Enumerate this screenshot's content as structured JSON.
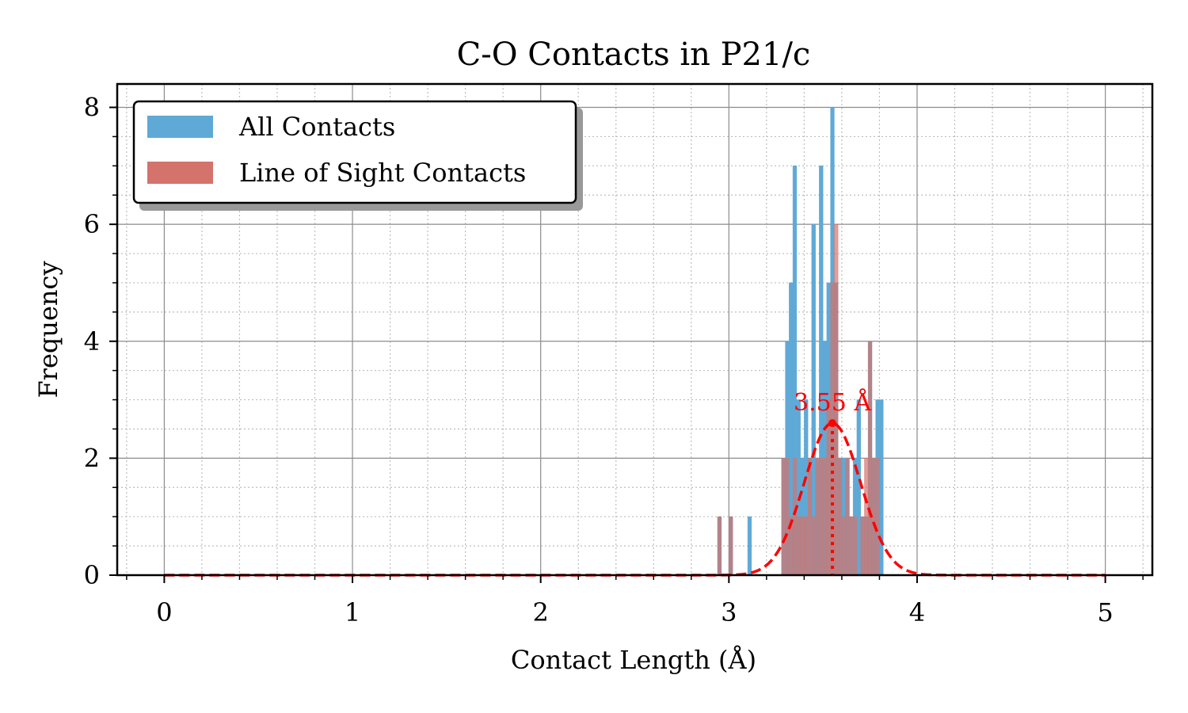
{
  "chart_data": {
    "type": "bar",
    "title": "C-O Contacts in P21/c",
    "xlabel": "Contact Length (Å)",
    "ylabel": "Frequency",
    "xlim": [
      -0.25,
      5.25
    ],
    "ylim": [
      0,
      8.4
    ],
    "x_ticks": [
      "0",
      "1",
      "2",
      "3",
      "4",
      "5"
    ],
    "y_ticks": [
      "0",
      "2",
      "4",
      "6",
      "8"
    ],
    "grid": true,
    "legend_position": "upper-left",
    "bin_width": 0.02,
    "series": [
      {
        "name": "All Contacts",
        "color": "#5fa9d6",
        "x": [
          2.94,
          3.0,
          3.1,
          3.28,
          3.3,
          3.32,
          3.34,
          3.36,
          3.38,
          3.4,
          3.42,
          3.44,
          3.46,
          3.48,
          3.5,
          3.52,
          3.54,
          3.56,
          3.58,
          3.6,
          3.62,
          3.64,
          3.66,
          3.68,
          3.7,
          3.72,
          3.74,
          3.76,
          3.78,
          3.8
        ],
        "values": [
          1,
          1,
          1,
          2,
          4,
          5,
          7,
          3,
          2,
          3,
          2,
          6,
          2,
          7,
          4,
          5,
          8,
          5,
          2,
          2,
          2,
          1,
          2,
          3,
          1,
          1,
          4,
          2,
          3,
          3
        ]
      },
      {
        "name": "Line of Sight Contacts",
        "color": "#d4736b",
        "x": [
          2.94,
          3.0,
          3.28,
          3.3,
          3.32,
          3.34,
          3.36,
          3.38,
          3.4,
          3.42,
          3.44,
          3.46,
          3.48,
          3.5,
          3.52,
          3.54,
          3.56,
          3.58,
          3.6,
          3.62,
          3.64,
          3.66,
          3.7,
          3.72,
          3.74,
          3.76,
          3.78
        ],
        "values": [
          1,
          1,
          2,
          2,
          1,
          2,
          1,
          1,
          1,
          2,
          1,
          2,
          2,
          2,
          3,
          5,
          6,
          2,
          1,
          2,
          1,
          1,
          1,
          2,
          4,
          2,
          2
        ]
      }
    ],
    "fit_curve": {
      "type": "gaussian",
      "color": "#ff0000",
      "style": "dashed",
      "mean": 3.55,
      "amplitude": 2.6,
      "sigma": 0.15,
      "x_range": [
        0,
        5
      ]
    },
    "annotation": {
      "text": "3.55 Å",
      "x": 3.55,
      "y": 2.6,
      "color": "#ff0000"
    }
  }
}
